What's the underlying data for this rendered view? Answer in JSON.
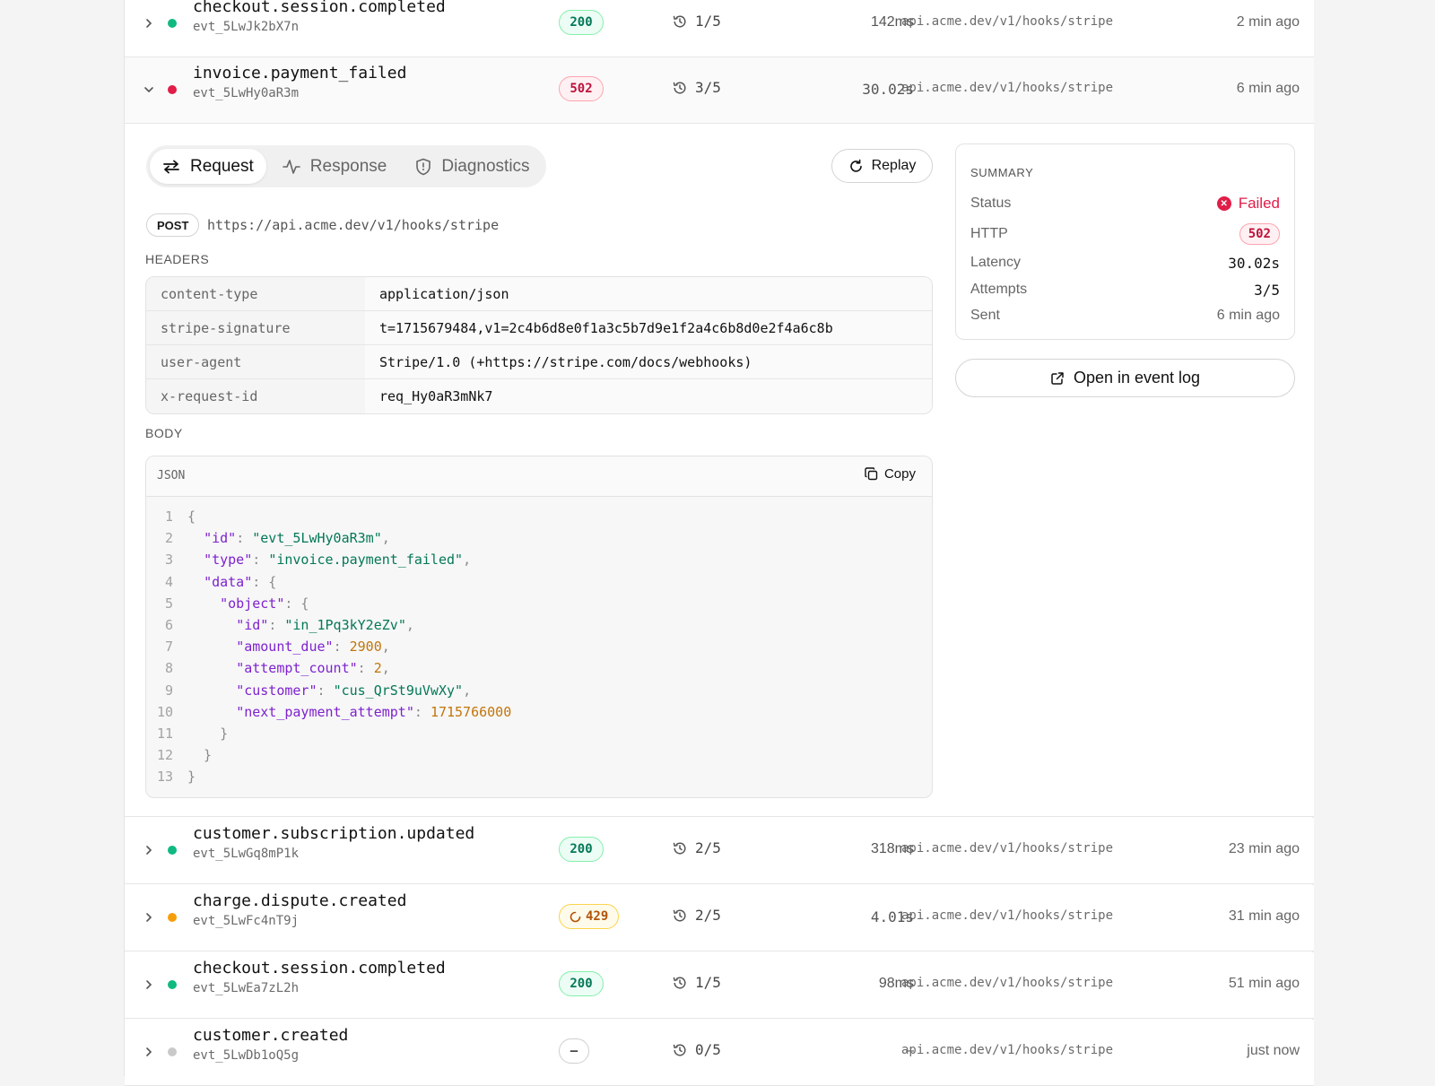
{
  "events": [
    {
      "name": "checkout.session.completed",
      "id": "evt_5LwJk2bX7n",
      "status": "200",
      "attempts": "1/5",
      "latency": "142ms",
      "endpoint": "api.acme.dev/v1/hooks/stripe",
      "when": "2 min ago"
    },
    {
      "name": "invoice.payment_failed",
      "id": "evt_5LwHy0aR3m",
      "status": "502",
      "attempts": "3/5",
      "latency": "30.02s",
      "endpoint": "api.acme.dev/v1/hooks/stripe",
      "when": "6 min ago"
    },
    {
      "name": "customer.subscription.updated",
      "id": "evt_5LwGq8mP1k",
      "status": "200",
      "attempts": "2/5",
      "latency": "318ms",
      "endpoint": "api.acme.dev/v1/hooks/stripe",
      "when": "23 min ago"
    },
    {
      "name": "charge.dispute.created",
      "id": "evt_5LwFc4nT9j",
      "status": "429",
      "attempts": "2/5",
      "latency": "4.01s",
      "endpoint": "api.acme.dev/v1/hooks/stripe",
      "when": "31 min ago"
    },
    {
      "name": "checkout.session.completed",
      "id": "evt_5LwEa7zL2h",
      "status": "200",
      "attempts": "1/5",
      "latency": "98ms",
      "endpoint": "api.acme.dev/v1/hooks/stripe",
      "when": "51 min ago"
    },
    {
      "name": "customer.created",
      "id": "evt_5LwDb1oQ5g",
      "status": "–",
      "attempts": "0/5",
      "latency": "–",
      "endpoint": "api.acme.dev/v1/hooks/stripe",
      "when": "just now"
    }
  ],
  "detail": {
    "tabs": {
      "request": "Request",
      "response": "Response",
      "diagnostics": "Diagnostics"
    },
    "replay": "Replay",
    "method": "POST",
    "url": "https://api.acme.dev/v1/hooks/stripe",
    "headers_label": "HEADERS",
    "headers": [
      {
        "key": "content-type",
        "value": "application/json"
      },
      {
        "key": "stripe-signature",
        "value": "t=1715679484,v1=2c4b6d8e0f1a3c5b7d9e1f2a4c6b8d0e2f4a6c8b"
      },
      {
        "key": "user-agent",
        "value": "Stripe/1.0 (+https://stripe.com/docs/webhooks)"
      },
      {
        "key": "x-request-id",
        "value": "req_Hy0aR3mNk7"
      }
    ],
    "body_label": "BODY",
    "code_lang": "JSON",
    "copy": "Copy",
    "body": {
      "id": "evt_5LwHy0aR3m",
      "type": "invoice.payment_failed",
      "object_id": "in_1Pq3kY2eZv",
      "amount_due": "2900",
      "attempt_count": "2",
      "customer": "cus_QrSt9uVwXy",
      "next_payment_attempt": "1715766000"
    }
  },
  "summary": {
    "title": "SUMMARY",
    "status_label": "Status",
    "status_value": "Failed",
    "http_label": "HTTP",
    "http_value": "502",
    "latency_label": "Latency",
    "latency_value": "30.02s",
    "attempts_label": "Attempts",
    "attempts_value": "3/5",
    "sent_label": "Sent",
    "sent_value": "6 min ago"
  },
  "open_log": "Open in event log",
  "colors": {
    "success": "#10b981",
    "error": "#e11d48",
    "warning": "#f59e0b",
    "neutral": "#c9c9c9"
  }
}
